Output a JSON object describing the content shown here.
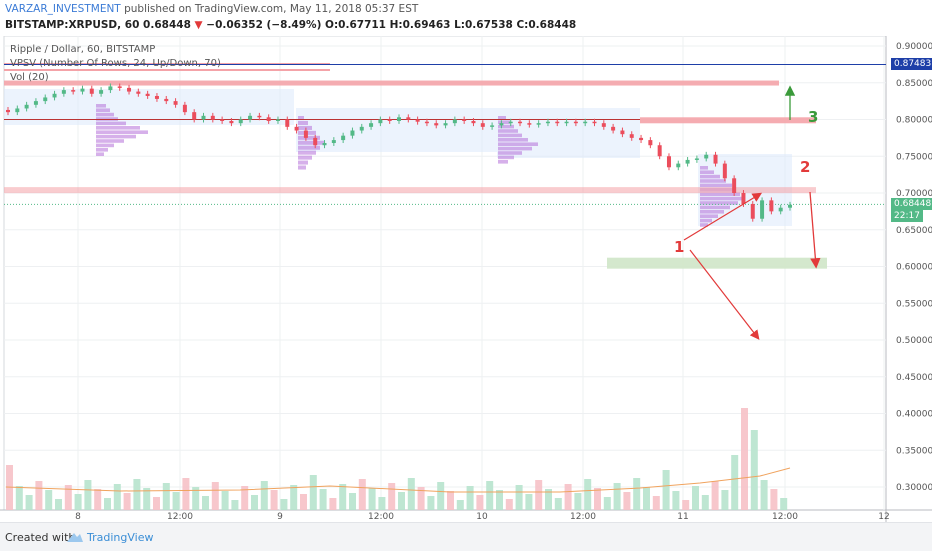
{
  "header": {
    "author": "VARZAR_INVESTMENT",
    "published_text": "published on TradingView.com, May 11, 2018 05:37 EST",
    "symbol": "BITSTAMP:XRPUSD, 60",
    "last": "0.68448",
    "change_arrow": "▼",
    "change": "−0.06352 (−8.49%)",
    "ohlc": "O:0.67711 H:0.69463 L:0.67538 C:0.68448"
  },
  "legend": {
    "title": "Ripple / Dollar, 60, BITSTAMP",
    "vpsv": "VPSV (Number Of Rows, 24, Up/Down, 70)",
    "vol": "Vol (20)"
  },
  "price_tags": {
    "blue_line": "0.87483",
    "last_price": "0.68448",
    "countdown": "22:17"
  },
  "annotations": {
    "label_1": "1",
    "label_2": "2",
    "label_3": "3"
  },
  "footer": {
    "created_with": "Created with",
    "brand": "TradingView"
  },
  "colors": {
    "up": "#53b987",
    "down": "#eb4d5c",
    "blue_line": "#1e3fa8",
    "resistance": "#f4a3a8",
    "support_zone": "#cfe6c8",
    "arrow_red": "#e23a3a",
    "arrow_green": "#3a9a3a"
  },
  "chart_data": {
    "type": "candlestick",
    "y_axis": {
      "ylim": [
        0.28,
        0.91
      ],
      "ticks": [
        "0.90000",
        "0.85000",
        "0.80000",
        "0.75000",
        "0.70000",
        "0.65000",
        "0.60000",
        "0.55000",
        "0.50000",
        "0.45000",
        "0.40000",
        "0.35000",
        "0.30000"
      ]
    },
    "x_axis": {
      "ticks": [
        "8",
        "12:00",
        "9",
        "12:00",
        "10",
        "12:00",
        "11",
        "12:00",
        "12"
      ]
    },
    "reference_lines": [
      {
        "name": "blue",
        "value": 0.87483
      },
      {
        "name": "last",
        "value": 0.68448
      }
    ],
    "close_series": [
      0.81,
      0.815,
      0.82,
      0.825,
      0.83,
      0.835,
      0.84,
      0.838,
      0.842,
      0.835,
      0.84,
      0.845,
      0.843,
      0.838,
      0.835,
      0.832,
      0.828,
      0.825,
      0.82,
      0.81,
      0.8,
      0.805,
      0.8,
      0.798,
      0.795,
      0.8,
      0.805,
      0.803,
      0.798,
      0.8,
      0.79,
      0.785,
      0.775,
      0.765,
      0.768,
      0.772,
      0.778,
      0.785,
      0.79,
      0.795,
      0.8,
      0.798,
      0.803,
      0.8,
      0.797,
      0.795,
      0.792,
      0.795,
      0.8,
      0.798,
      0.795,
      0.79,
      0.792,
      0.795,
      0.797,
      0.795,
      0.793,
      0.795,
      0.797,
      0.795,
      0.797,
      0.795,
      0.797,
      0.795,
      0.79,
      0.785,
      0.78,
      0.775,
      0.772,
      0.765,
      0.75,
      0.735,
      0.74,
      0.745,
      0.747,
      0.752,
      0.74,
      0.72,
      0.7,
      0.685,
      0.665,
      0.69,
      0.675,
      0.68,
      0.684
    ]
  }
}
